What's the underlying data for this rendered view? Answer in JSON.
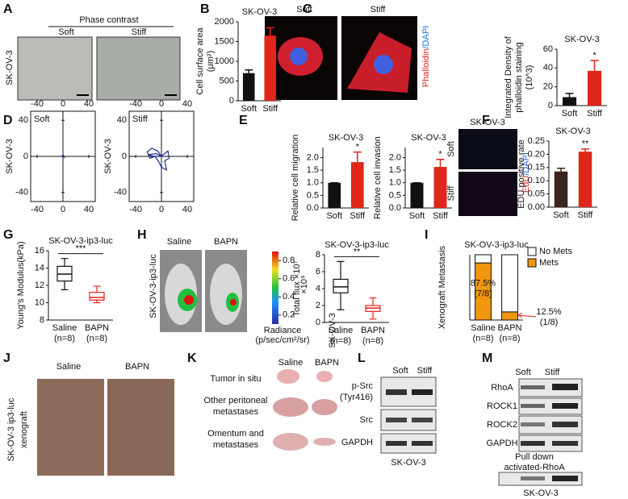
{
  "figure": {
    "panels": [
      "A",
      "B",
      "C",
      "D",
      "E",
      "F",
      "G",
      "H",
      "I",
      "J",
      "K",
      "L",
      "M"
    ],
    "a": {
      "header": "Phase contrast",
      "cols": [
        "Soft",
        "Stiff"
      ],
      "row": "SK-OV-3"
    },
    "c": {
      "cols": [
        "Soft",
        "Stiff"
      ],
      "row": "SK-OV-3",
      "stain": [
        "Phalloidin",
        "/DAPI"
      ]
    },
    "f": {
      "header": "SK-OV-3",
      "rows": [
        "Soft",
        "Stiff"
      ],
      "stain": [
        "EdU",
        "/DAPI"
      ]
    },
    "h": {
      "cols": [
        "Saline",
        "BAPN"
      ],
      "row": "SK-OV-3-ip3-luc",
      "colorbar": {
        "lim": [
          0.1,
          0.9
        ],
        "ticks": [
          0.2,
          0.4,
          0.6,
          0.8
        ],
        "exponent": "×10⁹",
        "label": [
          "Radiance",
          "(p/sec/cm²/sr)"
        ]
      }
    },
    "j": {
      "cols": [
        "Saline",
        "BAPN"
      ],
      "row": [
        "SK-OV-3 ip3-luc",
        "xenograft"
      ]
    },
    "k": {
      "cols": [
        "Saline",
        "BAPN"
      ],
      "rows": [
        "Tumor in situ",
        "Other peritoneal",
        "metastases",
        "Omentum and",
        "metastases"
      ]
    },
    "l": {
      "cols": [
        "Soft",
        "Stiff"
      ],
      "rows": [
        "p-Src",
        "(Tyr416)",
        "Src",
        "GAPDH"
      ],
      "footer": "SK-OV-3"
    },
    "m": {
      "cols": [
        "Soft",
        "Stiff"
      ],
      "rows": [
        "RhoA",
        "ROCK1",
        "ROCK2",
        "GAPDH",
        "Pull down",
        "activated-RhoA"
      ],
      "footer": "SK-OV-3"
    }
  },
  "chart_data": [
    {
      "type": "bar",
      "title": "SK-OV-3",
      "ylabel": [
        "Cell surface area",
        "(μm²)"
      ],
      "categories": [
        "Soft",
        "Stiff"
      ],
      "values": [
        700,
        1650
      ],
      "errors": [
        80,
        200
      ],
      "colors": [
        "#111111",
        "#e0251b"
      ],
      "ylim": [
        0,
        2000
      ],
      "yticks": [
        0,
        500,
        1000,
        1500,
        2000
      ],
      "sig": "**"
    },
    {
      "type": "bar",
      "title": "SK-OV-3",
      "ylabel": [
        "Integrated Density of",
        "phalloidin staining",
        "(10^3)"
      ],
      "categories": [
        "Soft",
        "Stiff"
      ],
      "values": [
        9,
        37
      ],
      "errors": [
        4,
        11
      ],
      "colors": [
        "#111111",
        "#e0251b"
      ],
      "ylim": [
        0,
        60
      ],
      "yticks": [
        0,
        20,
        40,
        60
      ],
      "sig": "*"
    },
    {
      "type": "line",
      "label": "Soft",
      "ylabel": [
        "SK-OV-3"
      ],
      "x": [
        -2,
        1,
        2,
        -1,
        -2,
        0
      ],
      "y": [
        0,
        1,
        -1,
        0,
        1,
        0
      ],
      "color": "#1f2f8a",
      "xlim": [
        -50,
        50
      ],
      "ylim": [
        -50,
        50
      ],
      "xticks": [
        -40,
        0,
        40
      ],
      "yticks": [
        -40,
        0,
        40
      ]
    },
    {
      "type": "line",
      "label": "Stiff",
      "ylabel": [
        "SK-OV-3"
      ],
      "x": [
        0,
        -6,
        -15,
        -22,
        -18,
        -10,
        -5,
        0,
        8,
        5,
        12,
        10,
        3,
        0,
        -8,
        -20,
        -12,
        0
      ],
      "y": [
        0,
        6,
        9,
        5,
        -2,
        0,
        -5,
        -12,
        -15,
        -5,
        -2,
        6,
        2,
        0,
        3,
        2,
        0,
        0
      ],
      "color": "#1f2f8a",
      "xlim": [
        -50,
        50
      ],
      "ylim": [
        -50,
        50
      ],
      "xticks": [
        -40,
        0,
        40
      ],
      "yticks": [
        -40,
        0,
        40
      ]
    },
    {
      "type": "bar",
      "title": "SK-OV-3",
      "ylabel": [
        "Relative cell migration"
      ],
      "categories": [
        "Soft",
        "Stiff"
      ],
      "values": [
        1,
        1.82
      ],
      "errors": [
        0,
        0.4
      ],
      "colors": [
        "#111111",
        "#e0251b"
      ],
      "ylim": [
        0,
        2.4
      ],
      "yticks": [
        {
          "value": 0,
          "label": "0.0"
        },
        {
          "value": 0.5,
          "label": "0.5"
        },
        {
          "value": 1,
          "label": "1.0"
        },
        {
          "value": 1.5,
          "label": "1.5"
        },
        {
          "value": 2,
          "label": "2.0"
        }
      ],
      "sig": "*"
    },
    {
      "type": "bar",
      "title": "SK-OV-3",
      "ylabel": [
        "Relative cell invasion"
      ],
      "categories": [
        "Soft",
        "Stiff"
      ],
      "values": [
        1,
        1.63
      ],
      "errors": [
        0,
        0.3
      ],
      "colors": [
        "#111111",
        "#e0251b"
      ],
      "ylim": [
        0,
        2.4
      ],
      "yticks": [
        {
          "value": 0,
          "label": "0.0"
        },
        {
          "value": 0.5,
          "label": "0.5"
        },
        {
          "value": 1,
          "label": "1.0"
        },
        {
          "value": 1.5,
          "label": "1.5"
        },
        {
          "value": 2,
          "label": "2.0"
        }
      ],
      "sig": "*"
    },
    {
      "type": "bar",
      "title": "SK-OV-3",
      "ylabel": [
        "EDU positive rate"
      ],
      "categories": [
        "Soft",
        "Stiff"
      ],
      "values": [
        0.135,
        0.21
      ],
      "errors": [
        0.012,
        0.01
      ],
      "colors": [
        "#3a2420",
        "#e0251b"
      ],
      "ylim": [
        0,
        0.25
      ],
      "yticks": [
        {
          "value": 0,
          "label": "0.00"
        },
        {
          "value": 0.05,
          "label": "0.05"
        },
        {
          "value": 0.1,
          "label": "0.10"
        },
        {
          "value": 0.15,
          "label": "0.15"
        },
        {
          "value": 0.2,
          "label": "0.20"
        },
        {
          "value": 0.25,
          "label": "0.25"
        }
      ],
      "sig": "**"
    },
    {
      "type": "box",
      "title": "SK-OV-3-ip3-luc",
      "ylabel": [
        "Young's Modulus(kPa)"
      ],
      "categories": [
        "Saline",
        "BAPN"
      ],
      "n_labels": [
        "(n=8)",
        "(n=8)"
      ],
      "min": [
        11.5,
        10
      ],
      "q1": [
        12.5,
        10.3
      ],
      "median": [
        13.3,
        10.6
      ],
      "q3": [
        14.2,
        11.2
      ],
      "max": [
        15.1,
        11.9
      ],
      "colors": [
        "#111111",
        "#e0251b"
      ],
      "ylim": [
        8,
        16
      ],
      "yticks": [
        8,
        10,
        12,
        14,
        16
      ],
      "sig": "***"
    },
    {
      "type": "box",
      "title": "SK-OV-3-ip3-luc",
      "ylabel": [
        "Total flux ×10⁷"
      ],
      "categories": [
        "Saline",
        "BAPN"
      ],
      "n_labels": [
        "(n=8)",
        "(n=8)"
      ],
      "min": [
        1.5,
        0.4
      ],
      "q1": [
        3.5,
        1.3
      ],
      "median": [
        4.2,
        1.7
      ],
      "q3": [
        5.1,
        2
      ],
      "max": [
        7.2,
        2.9
      ],
      "colors": [
        "#111111",
        "#e0251b"
      ],
      "ylim": [
        0,
        8
      ],
      "yticks": [
        0,
        2,
        4,
        6,
        8
      ],
      "sig": "**"
    },
    {
      "type": "stacked",
      "title": "SK-OV-3-ip3-luc",
      "ylabel": [
        "Xenograft Metastasis"
      ],
      "categories": [
        "Saline",
        "BAPN"
      ],
      "n_labels": [
        "(n=8)",
        "(n=8)"
      ],
      "series": [
        {
          "name": "Mets",
          "color": "#f0960f",
          "values": [
            7,
            1
          ]
        },
        {
          "name": "No Mets",
          "color": "#ffffff",
          "values": [
            1,
            7
          ]
        }
      ],
      "annotations": [
        "87.5%",
        "(7/8)",
        "12.5%",
        "(1/8)"
      ],
      "ylim": [
        0,
        8
      ]
    }
  ]
}
